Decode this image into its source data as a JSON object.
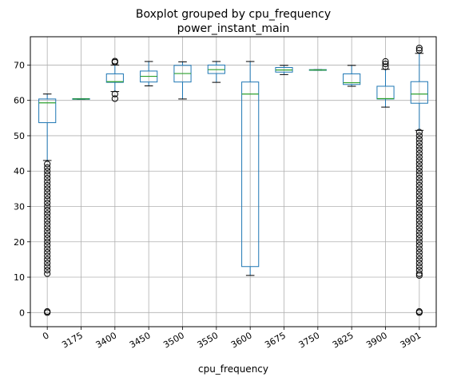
{
  "chart_data": {
    "type": "boxplot",
    "title": "Boxplot grouped by cpu_frequency",
    "subtitle": "power_instant_main",
    "xlabel": "cpu_frequency",
    "ylabel": "",
    "ylim": [
      -4,
      78
    ],
    "yticks": [
      0,
      10,
      20,
      30,
      40,
      50,
      60,
      70
    ],
    "grid": true,
    "colors": {
      "box": "#1f77b4",
      "median": "#2ca02c",
      "whisker": "#000000",
      "grid": "#b0b0b0",
      "outlier": "#000000"
    },
    "categories": [
      "0",
      "3175",
      "3400",
      "3450",
      "3500",
      "3550",
      "3600",
      "3675",
      "3750",
      "3825",
      "3900",
      "3901"
    ],
    "boxes": [
      {
        "category": "0",
        "whislo": 43,
        "q1": 53.7,
        "med": 59.3,
        "q3": 60.4,
        "whishi": 61.8,
        "fliers": [
          0,
          0.3,
          11,
          12,
          13,
          14,
          15,
          16,
          17,
          18,
          19,
          20,
          21,
          22,
          23,
          24,
          25,
          26,
          27,
          28,
          29,
          30,
          31,
          32,
          33,
          34,
          35,
          36,
          37,
          38,
          39,
          40,
          41,
          42
        ]
      },
      {
        "category": "3175",
        "whislo": 60.3,
        "q1": 60.3,
        "med": 60.4,
        "q3": 60.5,
        "whishi": 60.5,
        "fliers": []
      },
      {
        "category": "3400",
        "whislo": 62.5,
        "q1": 65.1,
        "med": 65.3,
        "q3": 67.5,
        "whishi": 70.0,
        "fliers": [
          60.5,
          61.8,
          70.8,
          71.1
        ]
      },
      {
        "category": "3450",
        "whislo": 64.1,
        "q1": 65.2,
        "med": 66.8,
        "q3": 68.3,
        "whishi": 71.0,
        "fliers": []
      },
      {
        "category": "3500",
        "whislo": 60.4,
        "q1": 65.2,
        "med": 67.6,
        "q3": 69.9,
        "whishi": 70.9,
        "fliers": []
      },
      {
        "category": "3550",
        "whislo": 65.1,
        "q1": 67.6,
        "med": 68.7,
        "q3": 70.0,
        "whishi": 71.0,
        "fliers": []
      },
      {
        "category": "3600",
        "whislo": 10.5,
        "q1": 13.0,
        "med": 61.8,
        "q3": 65.2,
        "whishi": 71.0,
        "fliers": []
      },
      {
        "category": "3675",
        "whislo": 67.3,
        "q1": 68.0,
        "med": 68.6,
        "q3": 69.3,
        "whishi": 69.9,
        "fliers": []
      },
      {
        "category": "3750",
        "whislo": 68.5,
        "q1": 68.5,
        "med": 68.6,
        "q3": 68.7,
        "whishi": 68.7,
        "fliers": []
      },
      {
        "category": "3825",
        "whislo": 64.0,
        "q1": 64.5,
        "med": 65.0,
        "q3": 67.5,
        "whishi": 69.9,
        "fliers": []
      },
      {
        "category": "3900",
        "whislo": 58.1,
        "q1": 60.4,
        "med": 60.5,
        "q3": 64.0,
        "whishi": 68.8,
        "fliers": [
          69.5,
          70.3,
          71.0
        ]
      },
      {
        "category": "3901",
        "whislo": 51.5,
        "q1": 59.2,
        "med": 61.8,
        "q3": 65.3,
        "whishi": 73.3,
        "fliers": [
          0,
          0.3,
          10.5,
          11,
          12,
          13,
          14,
          15,
          16,
          17,
          18,
          19,
          20,
          21,
          22,
          23,
          24,
          25,
          26,
          27,
          28,
          29,
          30,
          31,
          32,
          33,
          34,
          35,
          36,
          37,
          38,
          39,
          40,
          41,
          42,
          43,
          44,
          45,
          46,
          47,
          48,
          49,
          50,
          51,
          74.2,
          74.8
        ]
      }
    ]
  }
}
